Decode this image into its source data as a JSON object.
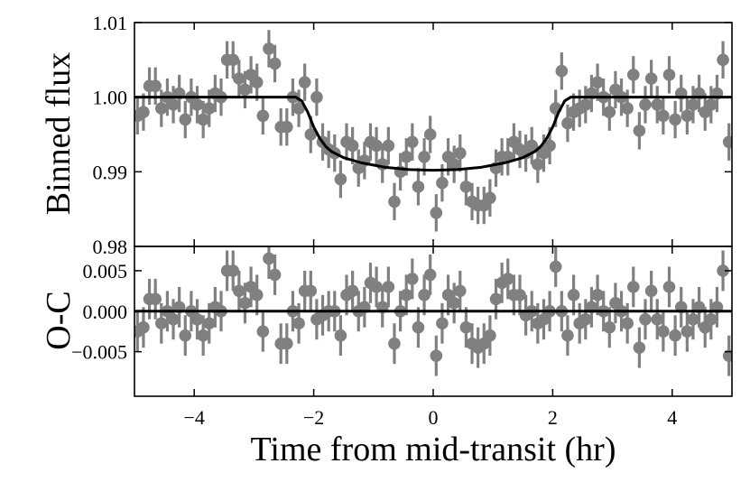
{
  "chart_data": {
    "type": "scatter",
    "xlabel": "Time from mid-transit (hr)",
    "xlim": [
      -5,
      5
    ],
    "xticks": [
      -4,
      -2,
      0,
      2,
      4
    ],
    "xtick_labels": [
      "−4",
      "−2",
      "0",
      "2",
      "4"
    ],
    "colors": {
      "points": "#808080",
      "model": "#000000",
      "axes": "#000000"
    },
    "panels": [
      {
        "name": "flux",
        "ylabel": "Binned flux",
        "ylim": [
          0.98,
          1.01
        ],
        "yticks": [
          0.98,
          0.99,
          1.0,
          1.01
        ],
        "ytick_labels": [
          "0.98",
          "0.99",
          "1.00",
          "1.01"
        ],
        "model": {
          "x": [
            -5,
            -2.3,
            -2.2,
            -2.1,
            -2.0,
            -1.9,
            -1.8,
            -1.7,
            -1.5,
            -1.2,
            -0.8,
            -0.4,
            0.0,
            0.4,
            0.8,
            1.2,
            1.5,
            1.7,
            1.8,
            1.9,
            2.0,
            2.1,
            2.2,
            2.3,
            5
          ],
          "y": [
            1.0,
            1.0,
            0.9995,
            0.998,
            0.996,
            0.9945,
            0.9934,
            0.9927,
            0.9919,
            0.9912,
            0.9906,
            0.9903,
            0.9902,
            0.9903,
            0.9906,
            0.9912,
            0.9919,
            0.9927,
            0.9934,
            0.9945,
            0.996,
            0.998,
            0.9995,
            1.0,
            1.0
          ]
        },
        "points": {
          "x": [
            -4.95,
            -4.85,
            -4.75,
            -4.65,
            -4.55,
            -4.45,
            -4.35,
            -4.25,
            -4.15,
            -4.05,
            -3.95,
            -3.85,
            -3.75,
            -3.65,
            -3.55,
            -3.45,
            -3.35,
            -3.25,
            -3.15,
            -3.05,
            -2.95,
            -2.85,
            -2.75,
            -2.65,
            -2.55,
            -2.45,
            -2.35,
            -2.25,
            -2.15,
            -2.05,
            -1.95,
            -1.85,
            -1.75,
            -1.65,
            -1.55,
            -1.45,
            -1.35,
            -1.25,
            -1.15,
            -1.05,
            -0.95,
            -0.85,
            -0.75,
            -0.65,
            -0.55,
            -0.45,
            -0.35,
            -0.25,
            -0.15,
            -0.05,
            0.05,
            0.15,
            0.25,
            0.35,
            0.45,
            0.55,
            0.65,
            0.75,
            0.85,
            0.95,
            1.05,
            1.15,
            1.25,
            1.35,
            1.45,
            1.55,
            1.65,
            1.75,
            1.85,
            1.95,
            2.05,
            2.15,
            2.25,
            2.35,
            2.45,
            2.55,
            2.65,
            2.75,
            2.85,
            2.95,
            3.05,
            3.15,
            3.25,
            3.35,
            3.45,
            3.55,
            3.65,
            3.75,
            3.85,
            3.95,
            4.05,
            4.15,
            4.25,
            4.35,
            4.45,
            4.55,
            4.65,
            4.75,
            4.85,
            4.95
          ],
          "y": [
            0.9975,
            0.998,
            1.0015,
            1.0015,
            0.9985,
            1.0,
            0.999,
            1.0005,
            0.997,
            1.0,
            0.999,
            0.997,
            0.9985,
            1.0005,
            1.0,
            1.005,
            1.005,
            1.0025,
            1.001,
            1.003,
            1.002,
            0.9975,
            1.0065,
            1.0045,
            0.996,
            0.996,
            1.0,
            0.9985,
            1.002,
            0.995,
            1.0,
            0.994,
            0.993,
            0.9925,
            0.989,
            0.994,
            0.9935,
            0.9905,
            0.9915,
            0.994,
            0.9935,
            0.991,
            0.9935,
            0.986,
            0.99,
            0.992,
            0.994,
            0.988,
            0.992,
            0.995,
            0.9845,
            0.9885,
            0.992,
            0.991,
            0.9925,
            0.988,
            0.986,
            0.9855,
            0.9855,
            0.9865,
            0.9905,
            0.992,
            0.992,
            0.994,
            0.993,
            0.9925,
            0.9935,
            0.991,
            0.9925,
            0.9935,
            0.9985,
            1.0035,
            0.9965,
            0.998,
            0.9985,
            0.999,
            1.0005,
            1.002,
            1.0,
            0.998,
            1.001,
            1.0,
            0.9985,
            1.003,
            0.9955,
            0.999,
            1.0025,
            0.999,
            0.9975,
            1.003,
            0.997,
            1.0005,
            0.9975,
            0.999,
            1.0005,
            0.998,
            0.999,
            1.0005,
            1.005,
            0.994
          ],
          "err": 0.0025
        },
        "reference": null
      },
      {
        "name": "residuals",
        "ylabel": "O-C",
        "ylim": [
          -0.0105,
          0.008
        ],
        "yticks": [
          -0.005,
          0.0,
          0.005
        ],
        "ytick_labels": [
          "−0.005",
          "0.000",
          "0.005"
        ],
        "model": null,
        "reference": 0.0,
        "points": {
          "x": [
            -4.95,
            -4.85,
            -4.75,
            -4.65,
            -4.55,
            -4.45,
            -4.35,
            -4.25,
            -4.15,
            -4.05,
            -3.95,
            -3.85,
            -3.75,
            -3.65,
            -3.55,
            -3.45,
            -3.35,
            -3.25,
            -3.15,
            -3.05,
            -2.95,
            -2.85,
            -2.75,
            -2.65,
            -2.55,
            -2.45,
            -2.35,
            -2.25,
            -2.15,
            -2.05,
            -1.95,
            -1.85,
            -1.75,
            -1.65,
            -1.55,
            -1.45,
            -1.35,
            -1.25,
            -1.15,
            -1.05,
            -0.95,
            -0.85,
            -0.75,
            -0.65,
            -0.55,
            -0.45,
            -0.35,
            -0.25,
            -0.15,
            -0.05,
            0.05,
            0.15,
            0.25,
            0.35,
            0.45,
            0.55,
            0.65,
            0.75,
            0.85,
            0.95,
            1.05,
            1.15,
            1.25,
            1.35,
            1.45,
            1.55,
            1.65,
            1.75,
            1.85,
            1.95,
            2.05,
            2.15,
            2.25,
            2.35,
            2.45,
            2.55,
            2.65,
            2.75,
            2.85,
            2.95,
            3.05,
            3.15,
            3.25,
            3.35,
            3.45,
            3.55,
            3.65,
            3.75,
            3.85,
            3.95,
            4.05,
            4.15,
            4.25,
            4.35,
            4.45,
            4.55,
            4.65,
            4.75,
            4.85,
            4.95
          ],
          "y": [
            -0.0025,
            -0.002,
            0.0015,
            0.0015,
            -0.0015,
            0.0,
            -0.001,
            0.0005,
            -0.003,
            0.0,
            -0.001,
            -0.003,
            -0.0015,
            0.0005,
            0.0,
            0.005,
            0.005,
            0.0025,
            0.001,
            0.003,
            0.002,
            -0.0025,
            0.0065,
            0.0045,
            -0.004,
            -0.004,
            0.0,
            -0.0015,
            0.0025,
            0.0025,
            -0.001,
            -0.0005,
            0.0,
            0.0,
            -0.003,
            0.002,
            0.0025,
            0.0,
            0.0005,
            0.0035,
            0.003,
            0.0005,
            0.003,
            -0.004,
            0.0,
            0.002,
            0.004,
            -0.002,
            0.002,
            0.0045,
            -0.0055,
            -0.0015,
            0.002,
            0.001,
            0.0025,
            -0.002,
            -0.004,
            -0.0045,
            -0.004,
            -0.003,
            0.0015,
            0.0035,
            0.004,
            0.002,
            0.002,
            -0.0005,
            0.0,
            -0.0015,
            -0.001,
            0.0,
            0.0055,
            0.0,
            -0.003,
            0.002,
            -0.0015,
            -0.001,
            0.0005,
            0.002,
            0.0,
            -0.002,
            0.001,
            0.0,
            -0.0015,
            0.003,
            -0.0045,
            -0.001,
            0.0025,
            -0.001,
            -0.0025,
            0.003,
            -0.003,
            0.0005,
            -0.0025,
            -0.001,
            0.0005,
            -0.002,
            -0.001,
            0.0005,
            0.005,
            -0.0055
          ],
          "err": 0.0025
        }
      }
    ]
  }
}
